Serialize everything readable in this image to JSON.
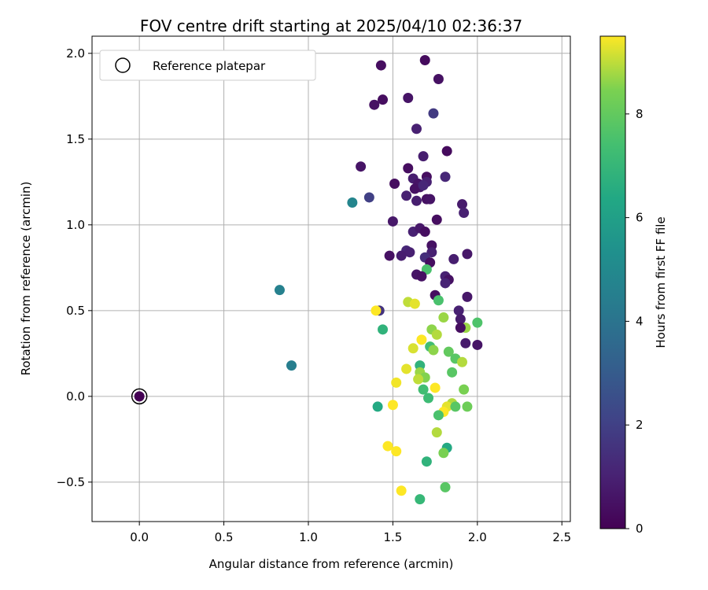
{
  "chart_data": {
    "type": "scatter",
    "title": "FOV centre drift starting at 2025/04/10 02:36:37",
    "xlabel": "Angular distance from reference (arcmin)",
    "ylabel": "Rotation from reference (arcmin)",
    "xlim": [
      -0.28,
      2.55
    ],
    "ylim": [
      -0.73,
      2.1
    ],
    "xticks": [
      0.0,
      0.5,
      1.0,
      1.5,
      2.0,
      2.5
    ],
    "xtick_labels": [
      "0.0",
      "0.5",
      "1.0",
      "1.5",
      "2.0",
      "2.5"
    ],
    "yticks": [
      -0.5,
      0.0,
      0.5,
      1.0,
      1.5,
      2.0
    ],
    "ytick_labels": [
      "−0.5",
      "0.0",
      "0.5",
      "1.0",
      "1.5",
      "2.0"
    ],
    "grid": true,
    "legend": {
      "placement": "upper left",
      "entries": [
        "Reference platepar"
      ]
    },
    "colorbar": {
      "label": "Hours from first FF file",
      "colormap": "viridis",
      "range": [
        0,
        9.5
      ],
      "ticks": [
        0,
        2,
        4,
        6,
        8
      ],
      "tick_labels": [
        "0",
        "2",
        "4",
        "6",
        "8"
      ]
    },
    "reference_point": {
      "x": 0.0,
      "y": 0.0,
      "c": 0.0
    },
    "points": [
      {
        "x": 1.69,
        "y": 1.96,
        "c": 0.3
      },
      {
        "x": 1.43,
        "y": 1.93,
        "c": 0.4
      },
      {
        "x": 1.77,
        "y": 1.85,
        "c": 0.5
      },
      {
        "x": 1.44,
        "y": 1.73,
        "c": 0.4
      },
      {
        "x": 1.39,
        "y": 1.7,
        "c": 0.5
      },
      {
        "x": 1.59,
        "y": 1.74,
        "c": 0.6
      },
      {
        "x": 1.74,
        "y": 1.65,
        "c": 1.8
      },
      {
        "x": 1.64,
        "y": 1.56,
        "c": 1.0
      },
      {
        "x": 1.82,
        "y": 1.43,
        "c": 0.3
      },
      {
        "x": 1.68,
        "y": 1.4,
        "c": 0.9
      },
      {
        "x": 1.31,
        "y": 1.34,
        "c": 0.6
      },
      {
        "x": 1.59,
        "y": 1.33,
        "c": 0.4
      },
      {
        "x": 1.7,
        "y": 1.28,
        "c": 0.4
      },
      {
        "x": 1.81,
        "y": 1.28,
        "c": 1.2
      },
      {
        "x": 1.62,
        "y": 1.27,
        "c": 0.9
      },
      {
        "x": 1.65,
        "y": 1.24,
        "c": 0.6
      },
      {
        "x": 1.51,
        "y": 1.24,
        "c": 0.4
      },
      {
        "x": 1.7,
        "y": 1.25,
        "c": 1.0
      },
      {
        "x": 1.66,
        "y": 1.22,
        "c": 0.7
      },
      {
        "x": 1.63,
        "y": 1.21,
        "c": 0.5
      },
      {
        "x": 1.68,
        "y": 1.23,
        "c": 1.2
      },
      {
        "x": 1.26,
        "y": 1.13,
        "c": 4.8
      },
      {
        "x": 1.36,
        "y": 1.16,
        "c": 2.0
      },
      {
        "x": 1.58,
        "y": 1.17,
        "c": 1.0
      },
      {
        "x": 1.64,
        "y": 1.14,
        "c": 0.9
      },
      {
        "x": 1.7,
        "y": 1.15,
        "c": 0.5
      },
      {
        "x": 1.72,
        "y": 1.15,
        "c": 0.6
      },
      {
        "x": 1.91,
        "y": 1.12,
        "c": 0.8
      },
      {
        "x": 1.92,
        "y": 1.07,
        "c": 1.0
      },
      {
        "x": 1.5,
        "y": 1.02,
        "c": 0.7
      },
      {
        "x": 1.76,
        "y": 1.03,
        "c": 0.4
      },
      {
        "x": 1.62,
        "y": 0.96,
        "c": 1.0
      },
      {
        "x": 1.66,
        "y": 0.98,
        "c": 0.7
      },
      {
        "x": 1.69,
        "y": 0.96,
        "c": 0.4
      },
      {
        "x": 1.73,
        "y": 0.88,
        "c": 0.5
      },
      {
        "x": 1.58,
        "y": 0.85,
        "c": 1.2
      },
      {
        "x": 1.6,
        "y": 0.84,
        "c": 1.0
      },
      {
        "x": 1.48,
        "y": 0.82,
        "c": 0.5
      },
      {
        "x": 1.55,
        "y": 0.82,
        "c": 0.9
      },
      {
        "x": 1.73,
        "y": 0.84,
        "c": 1.0
      },
      {
        "x": 1.69,
        "y": 0.81,
        "c": 1.4
      },
      {
        "x": 1.72,
        "y": 0.78,
        "c": 0.4
      },
      {
        "x": 1.86,
        "y": 0.8,
        "c": 0.9
      },
      {
        "x": 1.94,
        "y": 0.83,
        "c": 0.7
      },
      {
        "x": 1.7,
        "y": 0.74,
        "c": 7.5
      },
      {
        "x": 1.64,
        "y": 0.71,
        "c": 0.6
      },
      {
        "x": 1.67,
        "y": 0.7,
        "c": 0.5
      },
      {
        "x": 1.81,
        "y": 0.7,
        "c": 1.0
      },
      {
        "x": 1.83,
        "y": 0.68,
        "c": 0.5
      },
      {
        "x": 1.81,
        "y": 0.66,
        "c": 1.1
      },
      {
        "x": 1.75,
        "y": 0.59,
        "c": 0.4
      },
      {
        "x": 1.94,
        "y": 0.58,
        "c": 0.7
      },
      {
        "x": 1.77,
        "y": 0.56,
        "c": 7.5
      },
      {
        "x": 1.59,
        "y": 0.55,
        "c": 9.0
      },
      {
        "x": 1.63,
        "y": 0.54,
        "c": 9.3
      },
      {
        "x": 1.89,
        "y": 0.5,
        "c": 1.0
      },
      {
        "x": 1.42,
        "y": 0.5,
        "c": 1.6
      },
      {
        "x": 1.4,
        "y": 0.5,
        "c": 9.5
      },
      {
        "x": 1.9,
        "y": 0.45,
        "c": 0.8
      },
      {
        "x": 1.8,
        "y": 0.46,
        "c": 8.7
      },
      {
        "x": 2.0,
        "y": 0.43,
        "c": 7.6
      },
      {
        "x": 1.93,
        "y": 0.4,
        "c": 8.7
      },
      {
        "x": 1.9,
        "y": 0.4,
        "c": 0.4
      },
      {
        "x": 1.73,
        "y": 0.39,
        "c": 8.6
      },
      {
        "x": 1.44,
        "y": 0.39,
        "c": 6.8
      },
      {
        "x": 1.76,
        "y": 0.36,
        "c": 8.9
      },
      {
        "x": 1.67,
        "y": 0.33,
        "c": 9.5
      },
      {
        "x": 1.93,
        "y": 0.31,
        "c": 0.8
      },
      {
        "x": 2.0,
        "y": 0.3,
        "c": 0.6
      },
      {
        "x": 1.72,
        "y": 0.29,
        "c": 7.3
      },
      {
        "x": 1.62,
        "y": 0.28,
        "c": 9.2
      },
      {
        "x": 1.74,
        "y": 0.27,
        "c": 8.6
      },
      {
        "x": 1.83,
        "y": 0.26,
        "c": 8.0
      },
      {
        "x": 1.87,
        "y": 0.22,
        "c": 7.8
      },
      {
        "x": 1.91,
        "y": 0.2,
        "c": 8.9
      },
      {
        "x": 0.9,
        "y": 0.18,
        "c": 4.5
      },
      {
        "x": 1.66,
        "y": 0.18,
        "c": 6.8
      },
      {
        "x": 1.58,
        "y": 0.16,
        "c": 9.3
      },
      {
        "x": 1.85,
        "y": 0.14,
        "c": 7.8
      },
      {
        "x": 1.66,
        "y": 0.14,
        "c": 8.7
      },
      {
        "x": 1.69,
        "y": 0.11,
        "c": 8.5
      },
      {
        "x": 1.65,
        "y": 0.1,
        "c": 9.0
      },
      {
        "x": 1.52,
        "y": 0.08,
        "c": 9.4
      },
      {
        "x": 1.75,
        "y": 0.05,
        "c": 9.5
      },
      {
        "x": 1.68,
        "y": 0.04,
        "c": 7.3
      },
      {
        "x": 1.92,
        "y": 0.04,
        "c": 8.4
      },
      {
        "x": 1.71,
        "y": -0.01,
        "c": 7.2
      },
      {
        "x": 1.85,
        "y": -0.04,
        "c": 8.9
      },
      {
        "x": 1.82,
        "y": -0.06,
        "c": 9.3
      },
      {
        "x": 1.41,
        "y": -0.06,
        "c": 6.4
      },
      {
        "x": 1.5,
        "y": -0.05,
        "c": 9.5
      },
      {
        "x": 1.87,
        "y": -0.06,
        "c": 7.8
      },
      {
        "x": 1.94,
        "y": -0.06,
        "c": 8.2
      },
      {
        "x": 1.8,
        "y": -0.09,
        "c": 9.5
      },
      {
        "x": 1.77,
        "y": -0.11,
        "c": 7.5
      },
      {
        "x": 1.76,
        "y": -0.21,
        "c": 8.9
      },
      {
        "x": 1.47,
        "y": -0.29,
        "c": 9.5
      },
      {
        "x": 1.82,
        "y": -0.3,
        "c": 6.4
      },
      {
        "x": 1.52,
        "y": -0.32,
        "c": 9.5
      },
      {
        "x": 1.8,
        "y": -0.33,
        "c": 8.4
      },
      {
        "x": 1.7,
        "y": -0.38,
        "c": 6.8
      },
      {
        "x": 1.81,
        "y": -0.53,
        "c": 7.8
      },
      {
        "x": 1.55,
        "y": -0.55,
        "c": 9.5
      },
      {
        "x": 1.66,
        "y": -0.6,
        "c": 7.0
      },
      {
        "x": 0.83,
        "y": 0.62,
        "c": 4.6
      }
    ]
  }
}
